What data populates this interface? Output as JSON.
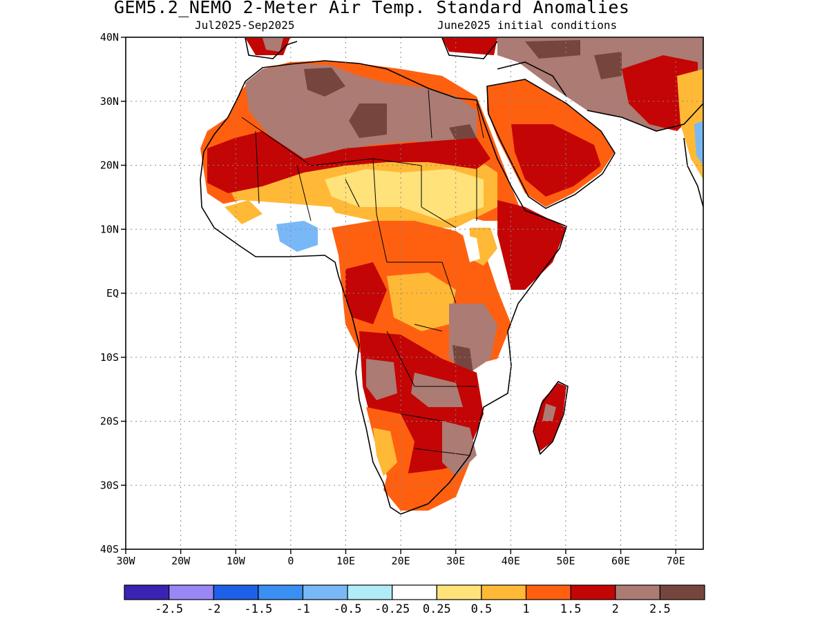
{
  "header": {
    "title": "GEM5.2_NEMO 2-Meter Air Temp. Standard Anomalies",
    "subtitle_left": "Jul2025-Sep2025",
    "subtitle_right": "June2025 initial conditions"
  },
  "map": {
    "region": "Africa",
    "lon_range": [
      -30,
      75
    ],
    "lat_range": [
      -40,
      40
    ],
    "gridlines": "dotted",
    "lat_ticks": [
      {
        "value": 40,
        "label": "40N"
      },
      {
        "value": 30,
        "label": "30N"
      },
      {
        "value": 20,
        "label": "20N"
      },
      {
        "value": 10,
        "label": "10N"
      },
      {
        "value": 0,
        "label": "EQ"
      },
      {
        "value": -10,
        "label": "10S"
      },
      {
        "value": -20,
        "label": "20S"
      },
      {
        "value": -30,
        "label": "30S"
      },
      {
        "value": -40,
        "label": "40S"
      }
    ],
    "lon_ticks": [
      {
        "value": -30,
        "label": "30W"
      },
      {
        "value": -20,
        "label": "20W"
      },
      {
        "value": -10,
        "label": "10W"
      },
      {
        "value": 0,
        "label": "0"
      },
      {
        "value": 10,
        "label": "10E"
      },
      {
        "value": 20,
        "label": "20E"
      },
      {
        "value": 30,
        "label": "30E"
      },
      {
        "value": 40,
        "label": "40E"
      },
      {
        "value": 50,
        "label": "50E"
      },
      {
        "value": 60,
        "label": "60E"
      },
      {
        "value": 70,
        "label": "70E"
      }
    ]
  },
  "colorbar": {
    "colors": [
      "#3a22b3",
      "#9b86f6",
      "#1f60e8",
      "#3a8ff2",
      "#79b8f7",
      "#b0ecf8",
      "#ffffff",
      "#ffe27a",
      "#ffb936",
      "#ff6010",
      "#c40505",
      "#ac7b73",
      "#76463e"
    ],
    "labels": [
      "-2.5",
      "-2",
      "-1.5",
      "-1",
      "-0.5",
      "-0.25",
      "0.25",
      "0.5",
      "1",
      "1.5",
      "2",
      "2.5"
    ]
  }
}
